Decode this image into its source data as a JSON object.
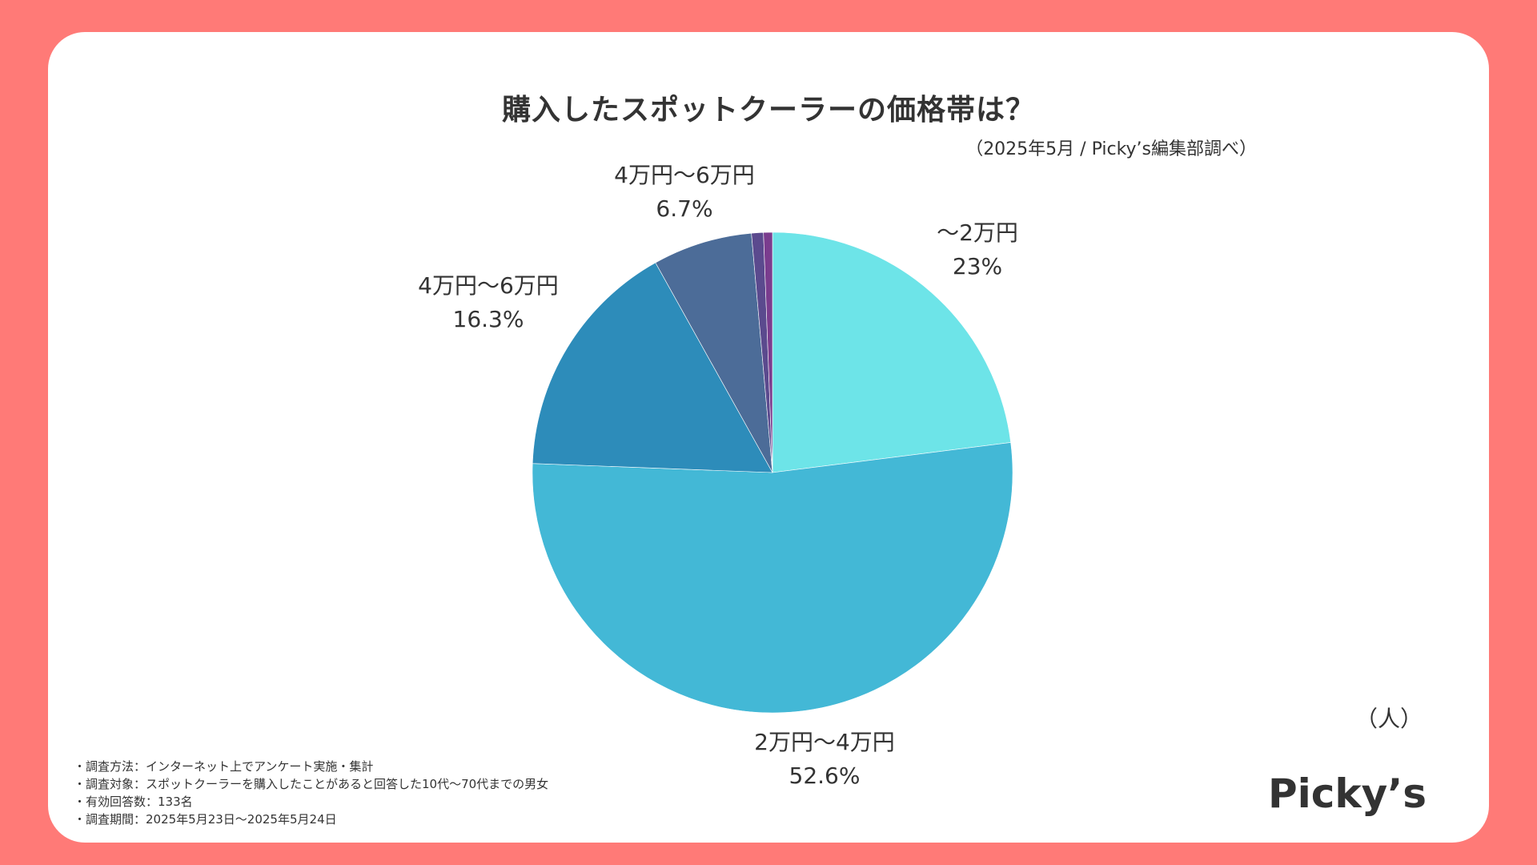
{
  "header": {
    "title": "購入したスポットクーラーの価格帯は？",
    "source": "（2025年5月 / Picky’s編集部調べ）"
  },
  "chart_data": {
    "type": "pie",
    "title": "購入したスポットクーラーの価格帯は？",
    "unit": "（人）",
    "slices": [
      {
        "label": "〜2万円",
        "percent_label": "23%",
        "value": 23.0,
        "color": "#6DE4E8"
      },
      {
        "label": "2万円〜4万円",
        "percent_label": "52.6%",
        "value": 52.6,
        "color": "#43B8D6"
      },
      {
        "label": "4万円〜6万円",
        "percent_label": "16.3%",
        "value": 16.3,
        "color": "#2D8CBA"
      },
      {
        "label": "4万円〜6万円",
        "percent_label": "6.7%",
        "value": 6.7,
        "color": "#4C6C98"
      },
      {
        "label": "",
        "percent_label": "",
        "value": 0.8,
        "color": "#5B4A8E"
      },
      {
        "label": "",
        "percent_label": "",
        "value": 0.6,
        "color": "#7A3C8E"
      }
    ]
  },
  "notes": [
    "・調査方法：インターネット上でアンケート実施・集計",
    "・調査対象：スポットクーラーを購入したことがあると回答した10代〜70代までの男女",
    "・有効回答数：133名",
    "・調査期間：2025年5月23日〜2025年5月24日"
  ],
  "brand": {
    "logo_text": "Picky’s"
  },
  "colors": {
    "background": "#FF7A77",
    "card": "#FFFFFF",
    "text": "#333333"
  }
}
